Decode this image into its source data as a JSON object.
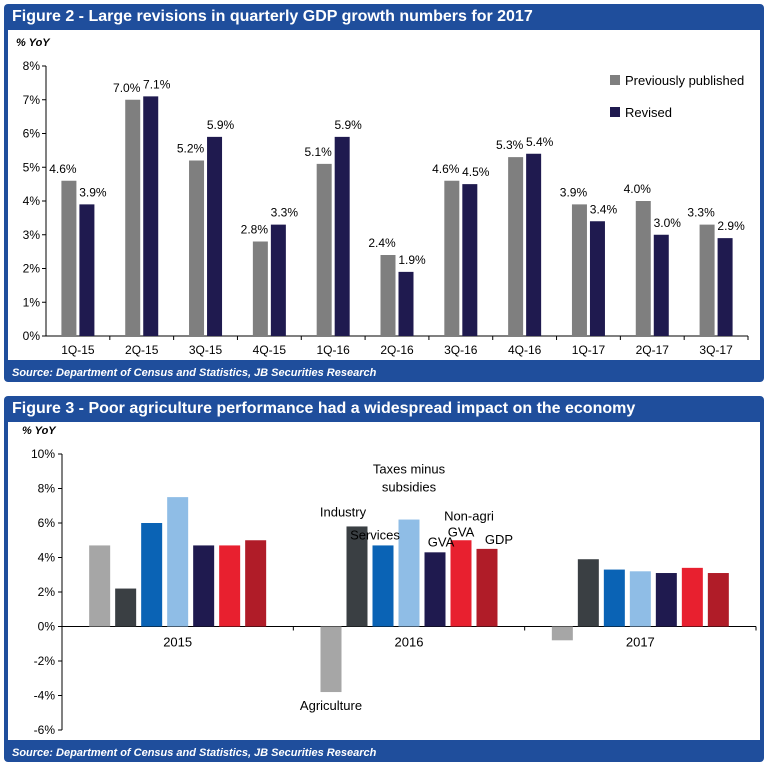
{
  "figure2": {
    "title": "Figure 2 - Large revisions in quarterly GDP growth numbers for 2017",
    "source": "Source: Department of Census and Statistics, JB Securities Research",
    "chart_data": {
      "type": "bar",
      "ylabel": "% YoY",
      "ylim": [
        0,
        8
      ],
      "yticks": [
        "0%",
        "1%",
        "2%",
        "3%",
        "4%",
        "5%",
        "6%",
        "7%",
        "8%"
      ],
      "categories": [
        "1Q-15",
        "2Q-15",
        "3Q-15",
        "4Q-15",
        "1Q-16",
        "2Q-16",
        "3Q-16",
        "4Q-16",
        "1Q-17",
        "2Q-17",
        "3Q-17"
      ],
      "series": [
        {
          "name": "Previously published",
          "color": "#7f7f7f",
          "values": [
            4.6,
            7.0,
            5.2,
            2.8,
            5.1,
            2.4,
            4.6,
            5.3,
            3.9,
            4.0,
            3.3
          ],
          "labels": [
            "4.6%",
            "7.0%",
            "5.2%",
            "2.8%",
            "5.1%",
            "2.4%",
            "4.6%",
            "5.3%",
            "3.9%",
            "4.0%",
            "3.3%"
          ]
        },
        {
          "name": "Revised",
          "color": "#1f1a4f",
          "values": [
            3.9,
            7.1,
            5.9,
            3.3,
            5.9,
            1.9,
            4.5,
            5.4,
            3.4,
            3.0,
            2.9
          ],
          "labels": [
            "3.9%",
            "7.1%",
            "5.9%",
            "3.3%",
            "5.9%",
            "1.9%",
            "4.5%",
            "5.4%",
            "3.4%",
            "3.0%",
            "2.9%"
          ]
        }
      ],
      "grid": false,
      "legend": "top-right"
    }
  },
  "figure3": {
    "title": "Figure 3 - Poor agriculture performance had a widespread impact on the economy",
    "source": "Source: Department of Census and Statistics, JB Securities Research",
    "chart_data": {
      "type": "bar",
      "ylabel": "% YoY",
      "ylim": [
        -6,
        10
      ],
      "yticks": [
        "-6%",
        "-4%",
        "-2%",
        "0%",
        "2%",
        "4%",
        "6%",
        "8%",
        "10%"
      ],
      "categories": [
        "2015",
        "2016",
        "2017"
      ],
      "series": [
        {
          "name": "Agriculture",
          "color": "#a6a6a6",
          "values": [
            4.7,
            -3.8,
            -0.8
          ]
        },
        {
          "name": "Industry",
          "color": "#3a3f43",
          "values": [
            2.2,
            5.8,
            3.9
          ]
        },
        {
          "name": "Services",
          "color": "#0a63b5",
          "values": [
            6.0,
            4.7,
            3.3
          ]
        },
        {
          "name": "Taxes minus subsidies",
          "color": "#8fbde6",
          "values": [
            7.5,
            6.2,
            3.2
          ]
        },
        {
          "name": "GVA",
          "color": "#1f1a4f",
          "values": [
            4.7,
            4.3,
            3.1
          ]
        },
        {
          "name": "Non-agri GVA",
          "color": "#e8202f",
          "values": [
            4.7,
            5.0,
            3.4
          ]
        },
        {
          "name": "GDP",
          "color": "#b01c28",
          "values": [
            5.0,
            4.5,
            3.1
          ]
        }
      ],
      "annotations": [
        {
          "text": "Industry",
          "category": "2016",
          "series": "Industry"
        },
        {
          "text": "Services",
          "category": "2016",
          "series": "Services"
        },
        {
          "text": "Taxes minus",
          "category": "2016",
          "series": "Taxes minus subsidies"
        },
        {
          "text": "subsidies",
          "category": "2016",
          "series": "Taxes minus subsidies"
        },
        {
          "text": "GVA",
          "category": "2016",
          "series": "GVA"
        },
        {
          "text": "Non-agri",
          "category": "2016",
          "series": "Non-agri GVA"
        },
        {
          "text": "GVA",
          "category": "2016",
          "series": "Non-agri GVA"
        },
        {
          "text": "GDP",
          "category": "2016",
          "series": "GDP"
        },
        {
          "text": "Agriculture",
          "category": "2016",
          "series": "Agriculture"
        }
      ],
      "grid": false,
      "legend": "none"
    }
  }
}
